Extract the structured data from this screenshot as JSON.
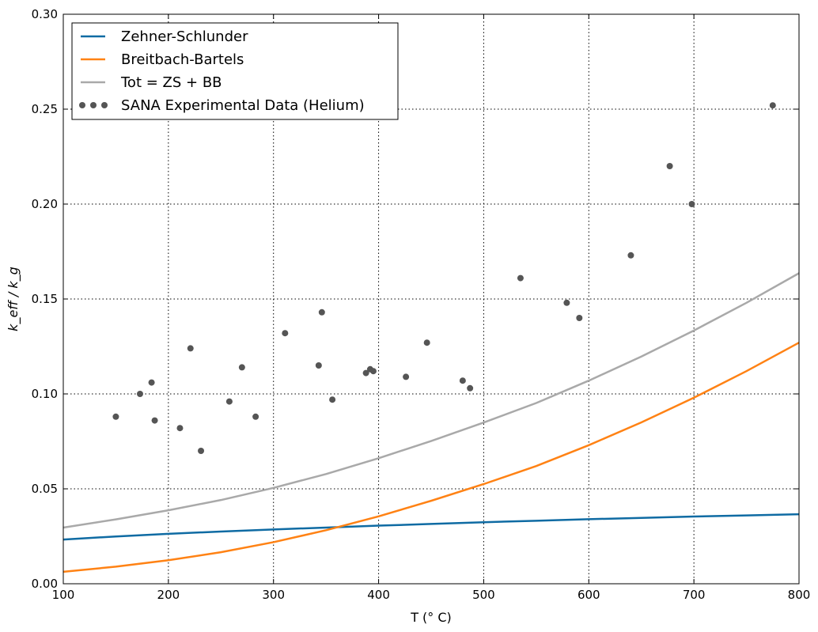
{
  "chart_data": {
    "type": "line",
    "xlabel": "T (° C)",
    "ylabel": "k_eff / k_g",
    "xlim": [
      100,
      800
    ],
    "ylim": [
      0.0,
      0.3
    ],
    "x_ticks": [
      100,
      200,
      300,
      400,
      500,
      600,
      700,
      800
    ],
    "y_ticks": [
      0.0,
      0.05,
      0.1,
      0.15,
      0.2,
      0.25,
      0.3
    ],
    "x_tick_labels": [
      "100",
      "200",
      "300",
      "400",
      "500",
      "600",
      "700",
      "800"
    ],
    "y_tick_labels": [
      "0.00",
      "0.05",
      "0.10",
      "0.15",
      "0.20",
      "0.25",
      "0.30"
    ],
    "grid": true,
    "legend_position": "top-left",
    "series": [
      {
        "name": "Zehner-Schlunder",
        "kind": "line",
        "color": "#0f6ba3",
        "x": [
          100,
          150,
          200,
          250,
          300,
          350,
          400,
          450,
          500,
          550,
          600,
          650,
          700,
          750,
          800
        ],
        "y": [
          0.0233,
          0.0249,
          0.0263,
          0.0275,
          0.0286,
          0.0296,
          0.0306,
          0.0315,
          0.0324,
          0.0332,
          0.034,
          0.0347,
          0.0354,
          0.036,
          0.0366
        ]
      },
      {
        "name": "Breitbach-Bartels",
        "kind": "line",
        "color": "#ff8214",
        "x": [
          100,
          150,
          200,
          250,
          300,
          350,
          400,
          450,
          500,
          550,
          600,
          650,
          700,
          750,
          800
        ],
        "y": [
          0.0063,
          0.009,
          0.0124,
          0.0166,
          0.0219,
          0.0282,
          0.0355,
          0.0437,
          0.0525,
          0.062,
          0.073,
          0.085,
          0.098,
          0.112,
          0.127
        ]
      },
      {
        "name": "Tot = ZS + BB",
        "kind": "line",
        "color": "#a9a9a9",
        "x": [
          100,
          150,
          200,
          250,
          300,
          350,
          400,
          450,
          500,
          550,
          600,
          650,
          700,
          750,
          800
        ],
        "y": [
          0.0296,
          0.0339,
          0.0387,
          0.0441,
          0.0505,
          0.0578,
          0.0661,
          0.0752,
          0.0849,
          0.0952,
          0.107,
          0.1197,
          0.1334,
          0.148,
          0.1636
        ]
      },
      {
        "name": "SANA Experimental Data (Helium)",
        "kind": "scatter",
        "color": "#555555",
        "x": [
          150,
          173,
          184,
          187,
          211,
          221,
          231,
          258,
          270,
          283,
          311,
          343,
          346,
          356,
          388,
          392,
          395,
          426,
          446,
          480,
          487,
          535,
          579,
          591,
          640,
          677,
          698,
          775
        ],
        "y": [
          0.088,
          0.1,
          0.106,
          0.086,
          0.082,
          0.124,
          0.07,
          0.096,
          0.114,
          0.088,
          0.132,
          0.115,
          0.143,
          0.097,
          0.111,
          0.113,
          0.112,
          0.109,
          0.127,
          0.107,
          0.103,
          0.161,
          0.148,
          0.14,
          0.173,
          0.22,
          0.2,
          0.252
        ]
      }
    ]
  }
}
